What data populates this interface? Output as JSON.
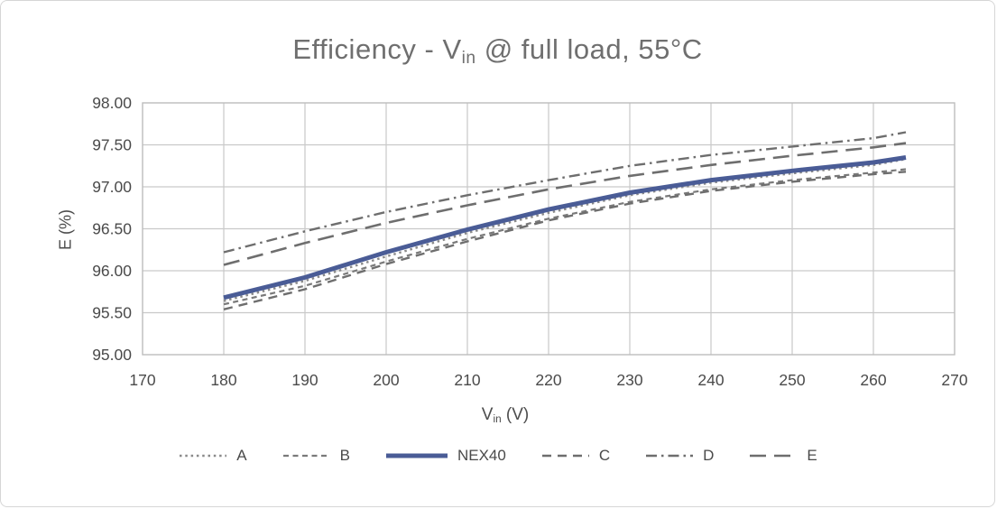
{
  "window": {
    "background_color": "#ffffff",
    "border_color": "#d6d6d6"
  },
  "colors": {
    "title_text": "#6f6f6f",
    "axis_text": "#4a4a4a",
    "gridline": "#c9c9c9",
    "plot_border": "#bdbdbd",
    "nex40_blue": "#4a5c96",
    "competitor_gray": "#6e6e6e"
  },
  "chart_data": {
    "type": "line",
    "title": {
      "prefix": "Efficiency - V",
      "sub": "in",
      "suffix": " @ full load, 55°C"
    },
    "x_axis": {
      "label": {
        "prefix": "V",
        "sub": "in",
        "suffix": " (V)"
      },
      "min": 170,
      "max": 270,
      "ticks": [
        170,
        180,
        190,
        200,
        210,
        220,
        230,
        240,
        250,
        260,
        270
      ]
    },
    "y_axis": {
      "label": "E (%)",
      "min": 95.0,
      "max": 98.0,
      "tick_labels": [
        "95.00",
        "95.50",
        "96.00",
        "96.50",
        "97.00",
        "97.50",
        "98.00"
      ]
    },
    "grid": true,
    "legend_position": "bottom",
    "x": [
      180,
      190,
      200,
      210,
      220,
      230,
      240,
      250,
      260,
      264
    ],
    "series": [
      {
        "name": "A",
        "line_style": "dotted",
        "color": "#8a8a8a",
        "emphasis": false,
        "values": [
          95.64,
          95.88,
          96.17,
          96.45,
          96.69,
          96.9,
          97.05,
          97.16,
          97.26,
          97.33
        ]
      },
      {
        "name": "B",
        "line_style": "short-dash",
        "color": "#7a7a7a",
        "emphasis": false,
        "values": [
          95.6,
          95.82,
          96.11,
          96.38,
          96.62,
          96.82,
          96.97,
          97.08,
          97.17,
          97.21
        ]
      },
      {
        "name": "NEX40",
        "line_style": "solid",
        "color": "#4a5c96",
        "emphasis": true,
        "values": [
          95.68,
          95.92,
          96.22,
          96.49,
          96.73,
          96.93,
          97.08,
          97.19,
          97.29,
          97.35
        ]
      },
      {
        "name": "C",
        "line_style": "dash",
        "color": "#6e6e6e",
        "emphasis": false,
        "values": [
          95.54,
          95.78,
          96.08,
          96.35,
          96.6,
          96.8,
          96.95,
          97.06,
          97.15,
          97.18
        ]
      },
      {
        "name": "D",
        "line_style": "dash-dot",
        "color": "#6e6e6e",
        "emphasis": false,
        "values": [
          96.22,
          96.47,
          96.7,
          96.9,
          97.08,
          97.25,
          97.38,
          97.48,
          97.58,
          97.65
        ]
      },
      {
        "name": "E",
        "line_style": "long-dash",
        "color": "#6e6e6e",
        "emphasis": false,
        "values": [
          96.07,
          96.33,
          96.57,
          96.78,
          96.97,
          97.13,
          97.26,
          97.37,
          97.47,
          97.52
        ]
      }
    ]
  }
}
